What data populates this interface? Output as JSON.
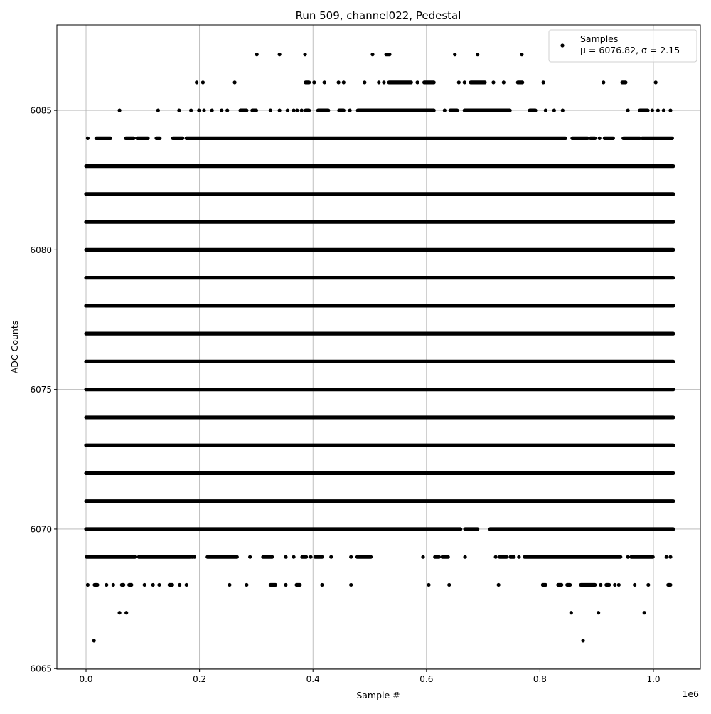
{
  "chart_data": {
    "type": "scatter",
    "title": "Run 509, channel022, Pedestal",
    "xlabel": "Sample #",
    "ylabel": "ADC Counts",
    "x_offset_label": "1e6",
    "xlim": [
      -0.0514,
      1.0827
    ],
    "ylim": [
      6064.98,
      6088.06
    ],
    "x_ticks": [
      0.0,
      0.2,
      0.4,
      0.6,
      0.8,
      1.0
    ],
    "x_tick_labels": [
      "0.0",
      "0.2",
      "0.4",
      "0.6",
      "0.8",
      "1.0"
    ],
    "y_ticks": [
      6065,
      6070,
      6075,
      6080,
      6085
    ],
    "y_tick_labels": [
      "6065",
      "6070",
      "6075",
      "6080",
      "6085"
    ],
    "grid": true,
    "legend_placement": "upper right",
    "marker_color": "#000000",
    "grid_color": "#b0b0b0",
    "series": [
      {
        "name": "Samples",
        "legend_stats": "μ = 6076.82, σ = 2.15",
        "x_units": "1e6 samples",
        "rows": [
          {
            "y": 6087,
            "x": [
              [
                0.301,
                0.301
              ],
              [
                0.341,
                0.341
              ],
              [
                0.386,
                0.386
              ],
              [
                0.505,
                0.505
              ],
              [
                0.529,
                0.535
              ],
              [
                0.65,
                0.65
              ],
              [
                0.69,
                0.69
              ],
              [
                0.768,
                0.768
              ]
            ]
          },
          {
            "y": 6086,
            "x": [
              [
                0.195,
                0.195
              ],
              [
                0.206,
                0.206
              ],
              [
                0.262,
                0.262
              ],
              [
                0.387,
                0.393
              ],
              [
                0.402,
                0.402
              ],
              [
                0.42,
                0.42
              ],
              [
                0.445,
                0.445
              ],
              [
                0.454,
                0.454
              ],
              [
                0.491,
                0.491
              ],
              [
                0.516,
                0.516
              ],
              [
                0.525,
                0.525
              ],
              [
                0.534,
                0.573
              ],
              [
                0.584,
                0.584
              ],
              [
                0.596,
                0.613
              ],
              [
                0.657,
                0.657
              ],
              [
                0.667,
                0.667
              ],
              [
                0.678,
                0.703
              ],
              [
                0.718,
                0.718
              ],
              [
                0.736,
                0.736
              ],
              [
                0.761,
                0.769
              ],
              [
                0.806,
                0.806
              ],
              [
                0.912,
                0.912
              ],
              [
                0.945,
                0.951
              ],
              [
                1.004,
                1.004
              ]
            ]
          },
          {
            "y": 6085,
            "x": [
              [
                0.059,
                0.059
              ],
              [
                0.127,
                0.127
              ],
              [
                0.164,
                0.164
              ],
              [
                0.185,
                0.185
              ],
              [
                0.199,
                0.199
              ],
              [
                0.208,
                0.208
              ],
              [
                0.222,
                0.222
              ],
              [
                0.239,
                0.239
              ],
              [
                0.249,
                0.249
              ],
              [
                0.272,
                0.283
              ],
              [
                0.293,
                0.3
              ],
              [
                0.325,
                0.325
              ],
              [
                0.341,
                0.341
              ],
              [
                0.355,
                0.355
              ],
              [
                0.366,
                0.366
              ],
              [
                0.372,
                0.372
              ],
              [
                0.38,
                0.38
              ],
              [
                0.387,
                0.393
              ],
              [
                0.409,
                0.427
              ],
              [
                0.446,
                0.454
              ],
              [
                0.465,
                0.465
              ],
              [
                0.479,
                0.613
              ],
              [
                0.632,
                0.632
              ],
              [
                0.642,
                0.654
              ],
              [
                0.667,
                0.747
              ],
              [
                0.782,
                0.792
              ],
              [
                0.81,
                0.81
              ],
              [
                0.825,
                0.825
              ],
              [
                0.84,
                0.84
              ],
              [
                0.955,
                0.955
              ],
              [
                0.976,
                0.99
              ],
              [
                0.998,
                0.998
              ],
              [
                1.008,
                1.008
              ],
              [
                1.018,
                1.018
              ],
              [
                1.03,
                1.03
              ]
            ]
          },
          {
            "y": 6084,
            "x": [
              [
                0.003,
                0.003
              ],
              [
                0.018,
                0.043
              ],
              [
                0.07,
                0.084
              ],
              [
                0.09,
                0.109
              ],
              [
                0.124,
                0.13
              ],
              [
                0.153,
                0.17
              ],
              [
                0.177,
                0.845
              ],
              [
                0.857,
                0.884
              ],
              [
                0.889,
                0.897
              ],
              [
                0.905,
                0.905
              ],
              [
                0.914,
                0.929
              ],
              [
                0.947,
                0.976
              ],
              [
                0.98,
                1.033
              ]
            ]
          },
          {
            "y": 6083,
            "x": [
              [
                0.0,
                1.035
              ]
            ]
          },
          {
            "y": 6082,
            "x": [
              [
                0.0,
                1.035
              ]
            ]
          },
          {
            "y": 6081,
            "x": [
              [
                0.0,
                1.035
              ]
            ]
          },
          {
            "y": 6080,
            "x": [
              [
                0.0,
                1.035
              ]
            ]
          },
          {
            "y": 6079,
            "x": [
              [
                0.0,
                1.035
              ]
            ]
          },
          {
            "y": 6078,
            "x": [
              [
                0.0,
                1.035
              ]
            ]
          },
          {
            "y": 6077,
            "x": [
              [
                0.0,
                1.035
              ]
            ]
          },
          {
            "y": 6076,
            "x": [
              [
                0.0,
                1.035
              ]
            ]
          },
          {
            "y": 6075,
            "x": [
              [
                0.0,
                1.035
              ]
            ]
          },
          {
            "y": 6074,
            "x": [
              [
                0.0,
                1.035
              ]
            ]
          },
          {
            "y": 6073,
            "x": [
              [
                0.0,
                1.035
              ]
            ]
          },
          {
            "y": 6072,
            "x": [
              [
                0.0,
                1.035
              ]
            ]
          },
          {
            "y": 6071,
            "x": [
              [
                0.0,
                1.035
              ]
            ]
          },
          {
            "y": 6070,
            "x": [
              [
                0.0,
                0.66
              ],
              [
                0.668,
                0.69
              ],
              [
                0.712,
                1.035
              ]
            ]
          },
          {
            "y": 6069,
            "x": [
              [
                0.001,
                0.086
              ],
              [
                0.093,
                0.183
              ],
              [
                0.187,
                0.187
              ],
              [
                0.191,
                0.191
              ],
              [
                0.214,
                0.266
              ],
              [
                0.289,
                0.289
              ],
              [
                0.312,
                0.328
              ],
              [
                0.352,
                0.352
              ],
              [
                0.366,
                0.366
              ],
              [
                0.381,
                0.388
              ],
              [
                0.396,
                0.396
              ],
              [
                0.404,
                0.416
              ],
              [
                0.432,
                0.432
              ],
              [
                0.467,
                0.467
              ],
              [
                0.478,
                0.502
              ],
              [
                0.594,
                0.594
              ],
              [
                0.615,
                0.622
              ],
              [
                0.628,
                0.638
              ],
              [
                0.668,
                0.668
              ],
              [
                0.722,
                0.722
              ],
              [
                0.729,
                0.741
              ],
              [
                0.748,
                0.754
              ],
              [
                0.763,
                0.763
              ],
              [
                0.773,
                0.942
              ],
              [
                0.955,
                0.955
              ],
              [
                0.961,
                0.999
              ],
              [
                1.023,
                1.023
              ],
              [
                1.03,
                1.03
              ]
            ]
          },
          {
            "y": 6068,
            "x": [
              [
                0.003,
                0.003
              ],
              [
                0.015,
                0.02
              ],
              [
                0.036,
                0.036
              ],
              [
                0.048,
                0.048
              ],
              [
                0.063,
                0.066
              ],
              [
                0.076,
                0.08
              ],
              [
                0.103,
                0.103
              ],
              [
                0.118,
                0.118
              ],
              [
                0.129,
                0.129
              ],
              [
                0.147,
                0.152
              ],
              [
                0.165,
                0.165
              ],
              [
                0.177,
                0.177
              ],
              [
                0.253,
                0.253
              ],
              [
                0.283,
                0.283
              ],
              [
                0.325,
                0.334
              ],
              [
                0.352,
                0.352
              ],
              [
                0.371,
                0.377
              ],
              [
                0.416,
                0.416
              ],
              [
                0.467,
                0.467
              ],
              [
                0.604,
                0.604
              ],
              [
                0.64,
                0.64
              ],
              [
                0.727,
                0.727
              ],
              [
                0.805,
                0.81
              ],
              [
                0.832,
                0.838
              ],
              [
                0.848,
                0.853
              ],
              [
                0.872,
                0.897
              ],
              [
                0.907,
                0.907
              ],
              [
                0.917,
                0.922
              ],
              [
                0.932,
                0.932
              ],
              [
                0.939,
                0.939
              ],
              [
                0.967,
                0.967
              ],
              [
                0.991,
                0.991
              ],
              [
                1.026,
                1.03
              ]
            ]
          },
          {
            "y": 6067,
            "x": [
              [
                0.059,
                0.059
              ],
              [
                0.071,
                0.071
              ],
              [
                0.855,
                0.855
              ],
              [
                0.903,
                0.903
              ],
              [
                0.984,
                0.984
              ]
            ]
          },
          {
            "y": 6066,
            "x": [
              [
                0.014,
                0.014
              ],
              [
                0.876,
                0.876
              ]
            ]
          }
        ]
      }
    ]
  }
}
